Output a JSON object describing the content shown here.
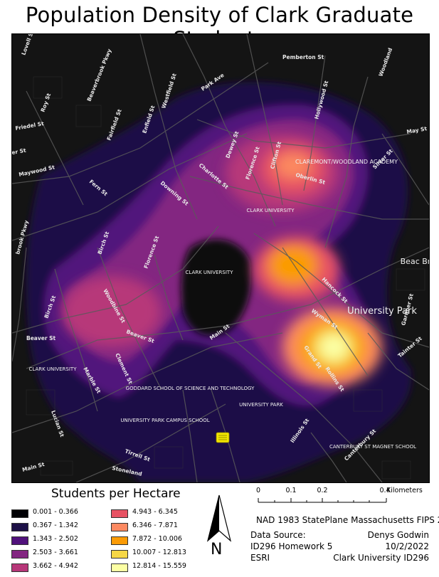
{
  "title": "Population Density of Clark Graduate Students",
  "map": {
    "street_labels": [
      "Lovell St",
      "Beaverbrook Pkwy",
      "Roy St",
      "Friedel St",
      "yer St",
      "Maywood St",
      "Fairfield St",
      "Enfield St",
      "Westfield St",
      "Park Ave",
      "Pemberton St",
      "Woodland",
      "May St",
      "Hollywood St",
      "Dewey St",
      "Florence St",
      "Clifton St",
      "Oberlin St",
      "Silver St",
      "Charlotte St",
      "Downing St",
      "Fern St",
      "Birch St",
      "Woodbine St",
      "Florence St",
      "Hancock St",
      "Wyman St",
      "Gardner St",
      "Beaver St",
      "Beaver St",
      "Marble St",
      "Clement St",
      "Main St",
      "Grand St",
      "Rollins St",
      "Tainter St",
      "Lucian St",
      "Tirrell St",
      "Main St",
      "Stoneland",
      "Illinois St",
      "Canterbury St",
      "Birch St",
      "brook Pkwy"
    ],
    "place_labels": [
      "CLAREMONT/WOODLAND ACADEMY",
      "CLARK UNIVERSITY",
      "CLARK UNIVERSITY",
      "CLARK UNIVERSITY",
      "GODDARD SCHOOL OF SCIENCE AND TECHNOLOGY",
      "UNIVERSITY PARK CAMPUS SCHOOL",
      "UNIVERSITY PARK",
      "CANTERBURY ST MAGNET SCHOOL",
      "University Park",
      "Beac Brig"
    ]
  },
  "legend": {
    "title": "Students per Hectare",
    "classes": [
      {
        "label": "0.001 - 0.366",
        "color": "#000004"
      },
      {
        "label": "0.367 - 1.342",
        "color": "#1d1147"
      },
      {
        "label": "1.343 - 2.502",
        "color": "#51127c"
      },
      {
        "label": "2.503 - 3.661",
        "color": "#832681"
      },
      {
        "label": "3.662 - 4.942",
        "color": "#b73779"
      },
      {
        "label": "4.943 - 6.345",
        "color": "#e75263"
      },
      {
        "label": "6.346 - 7.871",
        "color": "#fc8961"
      },
      {
        "label": "7.872 - 10.006",
        "color": "#fb9b06"
      },
      {
        "label": "10.007 - 12.813",
        "color": "#f6d746"
      },
      {
        "label": "12.814 - 15.559",
        "color": "#fcffa4"
      }
    ]
  },
  "scale_bar": {
    "ticks": [
      "0",
      "0.1",
      "0.2",
      "0.4"
    ],
    "unit": "Kilometers"
  },
  "north_arrow": {
    "icon": "north-arrow-icon",
    "label": "N"
  },
  "projection": "NAD 1983 StatePlane Massachusetts FIPS 2001",
  "source": {
    "line1": "Data Source:",
    "line2": "ID296 Homework 5",
    "line3": "ESRI"
  },
  "author": {
    "name": "Denys Godwin",
    "date": "10/2/2022",
    "course": "Clark University ID296"
  }
}
